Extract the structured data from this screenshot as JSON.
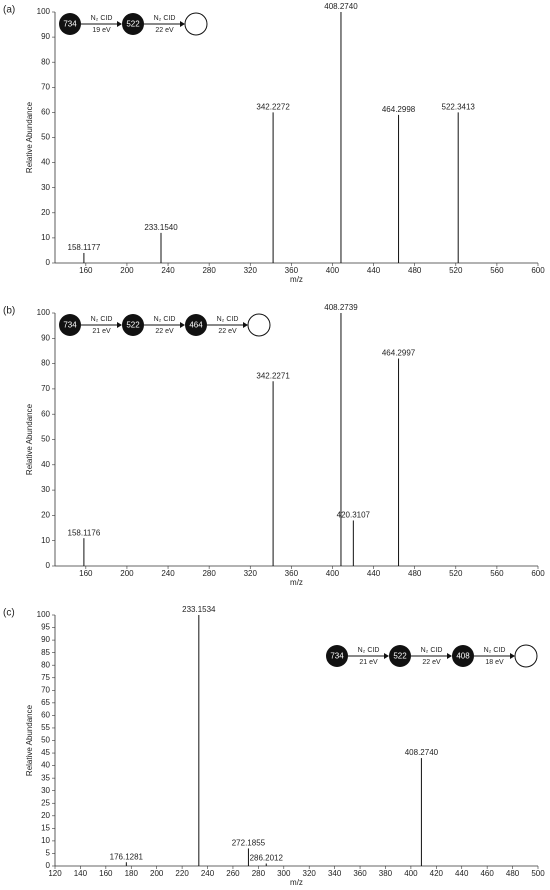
{
  "chart_data": [
    {
      "type": "bar",
      "panel_label": "(a)",
      "ylabel": "Relative Abundance",
      "xlabel": "m/z",
      "x": [
        158.1177,
        233.154,
        342.2272,
        408.274,
        464.2998,
        522.3413
      ],
      "peak_labels": [
        "158.1177",
        "233.1540",
        "342.2272",
        "408.2740",
        "464.2998",
        "522.3413"
      ],
      "values": [
        4,
        12,
        60,
        100,
        59,
        60
      ],
      "color": "#111111",
      "xlim": [
        130,
        600
      ],
      "xticks": [
        160,
        200,
        240,
        280,
        320,
        360,
        400,
        440,
        480,
        520,
        560,
        600
      ],
      "ylim": [
        0,
        100
      ],
      "yticks": [
        0,
        10,
        20,
        30,
        40,
        50,
        60,
        70,
        80,
        90,
        100
      ],
      "scheme": {
        "nodes": [
          "734",
          "522"
        ],
        "steps": [
          {
            "gas": "N₂ CID",
            "energy": "19 eV"
          },
          {
            "gas": "N₂ CID",
            "energy": "22 eV"
          }
        ]
      }
    },
    {
      "type": "bar",
      "panel_label": "(b)",
      "ylabel": "Relative Abundance",
      "xlabel": "m/z",
      "x": [
        158.1176,
        342.2271,
        408.2739,
        420.3107,
        464.2997
      ],
      "peak_labels": [
        "158.1176",
        "342.2271",
        "408.2739",
        "420.3107",
        "464.2997"
      ],
      "values": [
        11,
        73,
        100,
        18,
        82
      ],
      "color": "#111111",
      "xlim": [
        130,
        600
      ],
      "xticks": [
        160,
        200,
        240,
        280,
        320,
        360,
        400,
        440,
        480,
        520,
        560,
        600
      ],
      "ylim": [
        0,
        100
      ],
      "yticks": [
        0,
        10,
        20,
        30,
        40,
        50,
        60,
        70,
        80,
        90,
        100
      ],
      "scheme": {
        "nodes": [
          "734",
          "522",
          "464"
        ],
        "steps": [
          {
            "gas": "N₂ CID",
            "energy": "21 eV"
          },
          {
            "gas": "N₂ CID",
            "energy": "22 eV"
          },
          {
            "gas": "N₂ CID",
            "energy": "22 eV"
          }
        ]
      }
    },
    {
      "type": "bar",
      "panel_label": "(c)",
      "ylabel": "Relative Abundance",
      "xlabel": "m/z",
      "x": [
        176.1281,
        233.1534,
        272.1855,
        286.2012,
        408.274
      ],
      "peak_labels": [
        "176.1281",
        "233.1534",
        "272.1855",
        "286.2012",
        "408.2740"
      ],
      "values": [
        1.5,
        100,
        7,
        1,
        43
      ],
      "color": "#111111",
      "xlim": [
        120,
        500
      ],
      "xticks": [
        120,
        140,
        160,
        180,
        200,
        220,
        240,
        260,
        280,
        300,
        320,
        340,
        360,
        380,
        400,
        420,
        440,
        460,
        480,
        500
      ],
      "ylim": [
        0,
        100
      ],
      "yticks": [
        0,
        5,
        10,
        15,
        20,
        25,
        30,
        35,
        40,
        45,
        50,
        55,
        60,
        65,
        70,
        75,
        80,
        85,
        90,
        95,
        100
      ],
      "scheme": {
        "nodes": [
          "734",
          "522",
          "408"
        ],
        "steps": [
          {
            "gas": "N₂ CID",
            "energy": "21 eV"
          },
          {
            "gas": "N₂ CID",
            "energy": "22 eV"
          },
          {
            "gas": "N₂ CID",
            "energy": "18 eV"
          }
        ]
      }
    }
  ]
}
